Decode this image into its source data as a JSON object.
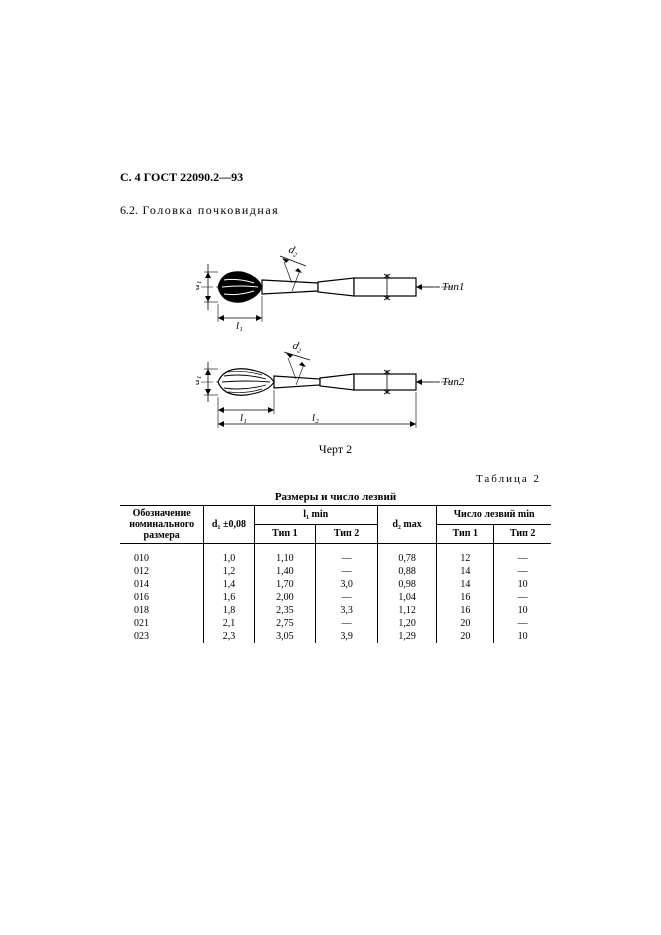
{
  "header": "С. 4 ГОСТ 22090.2—93",
  "section_num": "6.2.",
  "section_title": "Головка почковидная",
  "diagram": {
    "caption": "Черт 2",
    "labels": {
      "d1": "d₁",
      "d2": "d₂",
      "l1": "l₁",
      "l2": "l₂",
      "tip1": "Тип1",
      "tip2": "Тип2"
    }
  },
  "table": {
    "label": "Таблица 2",
    "title": "Размеры и число лезвий",
    "headers": {
      "desig": "Обозначение номинального размера",
      "d1": "d₁ ±0,08",
      "l1min": "l₁ min",
      "tip1": "Тип 1",
      "tip2": "Тип 2",
      "d2max": "d₂ max",
      "blades": "Число лезвий min"
    },
    "rows": [
      {
        "desig": "010",
        "d1": "1,0",
        "l1t1": "1,10",
        "l1t2": "—",
        "d2": "0,78",
        "nt1": "12",
        "nt2": "—"
      },
      {
        "desig": "012",
        "d1": "1,2",
        "l1t1": "1,40",
        "l1t2": "—",
        "d2": "0,88",
        "nt1": "14",
        "nt2": "—"
      },
      {
        "desig": "014",
        "d1": "1,4",
        "l1t1": "1,70",
        "l1t2": "3,0",
        "d2": "0,98",
        "nt1": "14",
        "nt2": "10"
      },
      {
        "desig": "016",
        "d1": "1,6",
        "l1t1": "2,00",
        "l1t2": "—",
        "d2": "1,04",
        "nt1": "16",
        "nt2": "—"
      },
      {
        "desig": "018",
        "d1": "1,8",
        "l1t1": "2,35",
        "l1t2": "3,3",
        "d2": "1,12",
        "nt1": "16",
        "nt2": "10"
      },
      {
        "desig": "021",
        "d1": "2,1",
        "l1t1": "2,75",
        "l1t2": "—",
        "d2": "1,20",
        "nt1": "20",
        "nt2": "—"
      },
      {
        "desig": "023",
        "d1": "2,3",
        "l1t1": "3,05",
        "l1t2": "3,9",
        "d2": "1,29",
        "nt1": "20",
        "nt2": "10"
      }
    ]
  },
  "colors": {
    "text": "#000000",
    "bg": "#ffffff",
    "line": "#000000"
  }
}
